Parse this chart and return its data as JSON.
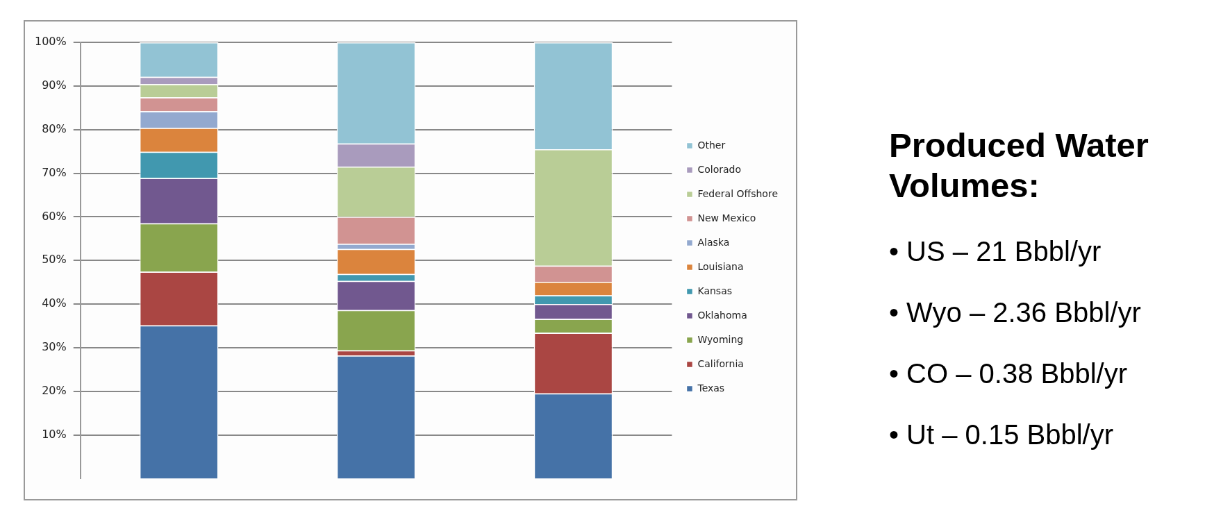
{
  "chart_data": {
    "type": "bar",
    "title": "Produced Water Volumes:",
    "annotations": [
      "• US – 21 Bbbl/yr",
      "• Wyo – 2.36 Bbbl/yr",
      "• CO – 0.38 Bbbl/yr",
      "• Ut – 0.15 Bbbl/yr"
    ],
    "categories": [
      null,
      null,
      null
    ],
    "stacked": true,
    "series": [
      {
        "name": "Texas",
        "color": "#4572a7",
        "values": [
          35.1,
          28.2,
          19.5
        ]
      },
      {
        "name": "California",
        "color": "#aa4643",
        "values": [
          12.3,
          1.2,
          13.9
        ]
      },
      {
        "name": "Wyoming",
        "color": "#89a54e",
        "values": [
          11.1,
          9.2,
          3.2
        ]
      },
      {
        "name": "Oklahoma",
        "color": "#71588f",
        "values": [
          10.4,
          6.7,
          3.4
        ]
      },
      {
        "name": "Kansas",
        "color": "#4198af",
        "values": [
          6.0,
          1.6,
          2.0
        ]
      },
      {
        "name": "Louisiana",
        "color": "#db843d",
        "values": [
          5.5,
          5.7,
          3.1
        ]
      },
      {
        "name": "Alaska",
        "color": "#93a9cf",
        "values": [
          3.8,
          1.2,
          0
        ]
      },
      {
        "name": "New Mexico",
        "color": "#d19392",
        "values": [
          3.2,
          6.2,
          3.7
        ]
      },
      {
        "name": "Federal Offshore",
        "color": "#b9cd96",
        "values": [
          3.0,
          11.5,
          26.7
        ]
      },
      {
        "name": "Colorado",
        "color": "#a99bbd",
        "values": [
          1.7,
          5.3,
          0
        ]
      },
      {
        "name": "Other",
        "color": "#92c3d4",
        "values": [
          7.9,
          23.2,
          24.5
        ]
      }
    ],
    "ylim": [
      0,
      100
    ],
    "yticks": [
      {
        "value": 10,
        "label": "10%"
      },
      {
        "value": 20,
        "label": "20%"
      },
      {
        "value": 30,
        "label": "30%"
      },
      {
        "value": 40,
        "label": "40%"
      },
      {
        "value": 50,
        "label": "50%"
      },
      {
        "value": 60,
        "label": "60%"
      },
      {
        "value": 70,
        "label": "70%"
      },
      {
        "value": 80,
        "label": "80%"
      },
      {
        "value": 90,
        "label": "90%"
      },
      {
        "value": 100,
        "label": "100%"
      }
    ],
    "grid": "y",
    "legend": "right"
  }
}
